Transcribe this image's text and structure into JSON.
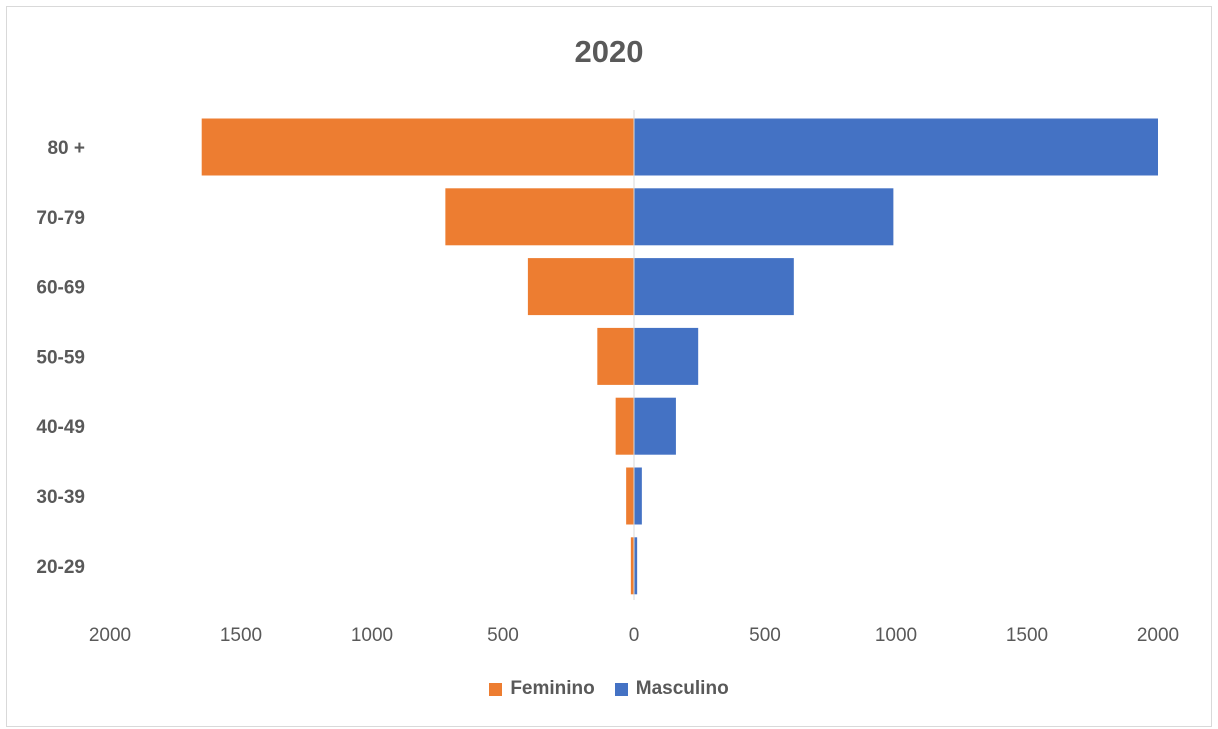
{
  "chart_data": {
    "type": "bar",
    "orientation": "horizontal",
    "title": "2020",
    "categories": [
      "80 +",
      "70-79",
      "60-69",
      "50-59",
      "40-49",
      "30-39",
      "20-29"
    ],
    "series": [
      {
        "name": "Feminino",
        "values": [
          1650,
          720,
          405,
          140,
          70,
          30,
          12
        ],
        "color": "#ED7D31",
        "side": "left"
      },
      {
        "name": "Masculino",
        "values": [
          2000,
          990,
          610,
          245,
          160,
          30,
          12
        ],
        "color": "#4472C4",
        "side": "right"
      }
    ],
    "x_ticks": [
      "2000",
      "1500",
      "1000",
      "500",
      "0",
      "500",
      "1000",
      "1500",
      "2000"
    ],
    "xlim": [
      -2000,
      2000
    ],
    "xlabel": "",
    "ylabel": "",
    "grid": false,
    "legend_position": "bottom"
  }
}
